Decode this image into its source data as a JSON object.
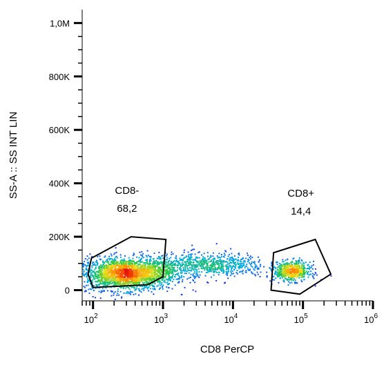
{
  "chart_data": {
    "type": "scatter",
    "subtype": "flow-cytometry density dot plot",
    "xlabel": "CD8 PerCP",
    "ylabel": "SS-A :: SS INT LIN",
    "x_scale": "log",
    "y_scale": "linear",
    "xlim": [
      70,
      1000000
    ],
    "ylim": [
      -40000,
      1050000
    ],
    "x_ticks": [
      {
        "value": 100,
        "base": "10",
        "exp": "2"
      },
      {
        "value": 1000,
        "base": "10",
        "exp": "3"
      },
      {
        "value": 10000,
        "base": "10",
        "exp": "4"
      },
      {
        "value": 100000,
        "base": "10",
        "exp": "5"
      },
      {
        "value": 1000000,
        "base": "10",
        "exp": "6"
      }
    ],
    "y_ticks": [
      {
        "value": 0,
        "label": "0"
      },
      {
        "value": 200000,
        "label": "200K"
      },
      {
        "value": 400000,
        "label": "400K"
      },
      {
        "value": 600000,
        "label": "600K"
      },
      {
        "value": 800000,
        "label": "800K"
      },
      {
        "value": 1000000,
        "label": "1,0M"
      }
    ],
    "grid": false,
    "color_scale": "density (blue low → green → yellow → red high)",
    "populations": [
      {
        "center_x": 300,
        "center_y": 60000,
        "spread_log": 0.35,
        "spread_y": 30000,
        "weight": 0.62
      },
      {
        "center_x": 4000,
        "center_y": 95000,
        "spread_log": 0.45,
        "spread_y": 22000,
        "weight": 0.22
      },
      {
        "center_x": 70000,
        "center_y": 70000,
        "spread_log": 0.13,
        "spread_y": 18000,
        "weight": 0.16
      }
    ],
    "gates": [
      {
        "name": "CD8-",
        "value": "68,2",
        "polygon": [
          [
            100,
            10000
          ],
          [
            85,
            60000
          ],
          [
            95,
            120000
          ],
          [
            350,
            200000
          ],
          [
            1100,
            190000
          ],
          [
            1000,
            50000
          ],
          [
            600,
            20000
          ]
        ]
      },
      {
        "name": "CD8+",
        "value": "14,4",
        "polygon": [
          [
            35000,
            0
          ],
          [
            38000,
            140000
          ],
          [
            150000,
            190000
          ],
          [
            250000,
            60000
          ],
          [
            90000,
            -15000
          ]
        ]
      }
    ]
  }
}
